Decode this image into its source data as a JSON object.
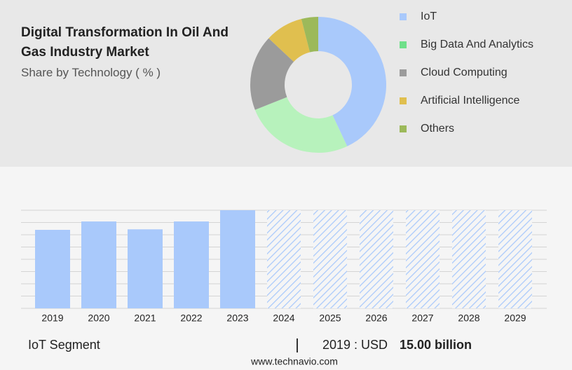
{
  "chart_data": [
    {
      "type": "pie",
      "title": "Digital Transformation In Oil And Gas Industry Market",
      "subtitle": "Share by Technology ( % )",
      "categories": [
        "IoT",
        "Big Data And Analytics",
        "Cloud Computing",
        "Artificial Intelligence",
        "Others"
      ],
      "values": [
        43,
        26,
        18,
        9,
        4
      ],
      "colors": [
        "#a9c9fb",
        "#b7f2bc",
        "#9b9b9b",
        "#e0bf4f",
        "#9cb95a"
      ],
      "legend_colors": [
        "#a9c9fb",
        "#6fe08a",
        "#9b9b9b",
        "#e0bf4f",
        "#9cb95a"
      ]
    },
    {
      "type": "bar",
      "categories": [
        "2019",
        "2020",
        "2021",
        "2022",
        "2023",
        "2024",
        "2025",
        "2026",
        "2027",
        "2028",
        "2029"
      ],
      "values": [
        15,
        16.6,
        15.1,
        16.6,
        18.75,
        null,
        null,
        null,
        null,
        null,
        null
      ],
      "color": "#a9c9fb",
      "grid": true,
      "segment": "IoT Segment",
      "highlight_label": "2019 : USD",
      "highlight_value": "15.00 billion",
      "source": "www.technavio.com"
    }
  ]
}
